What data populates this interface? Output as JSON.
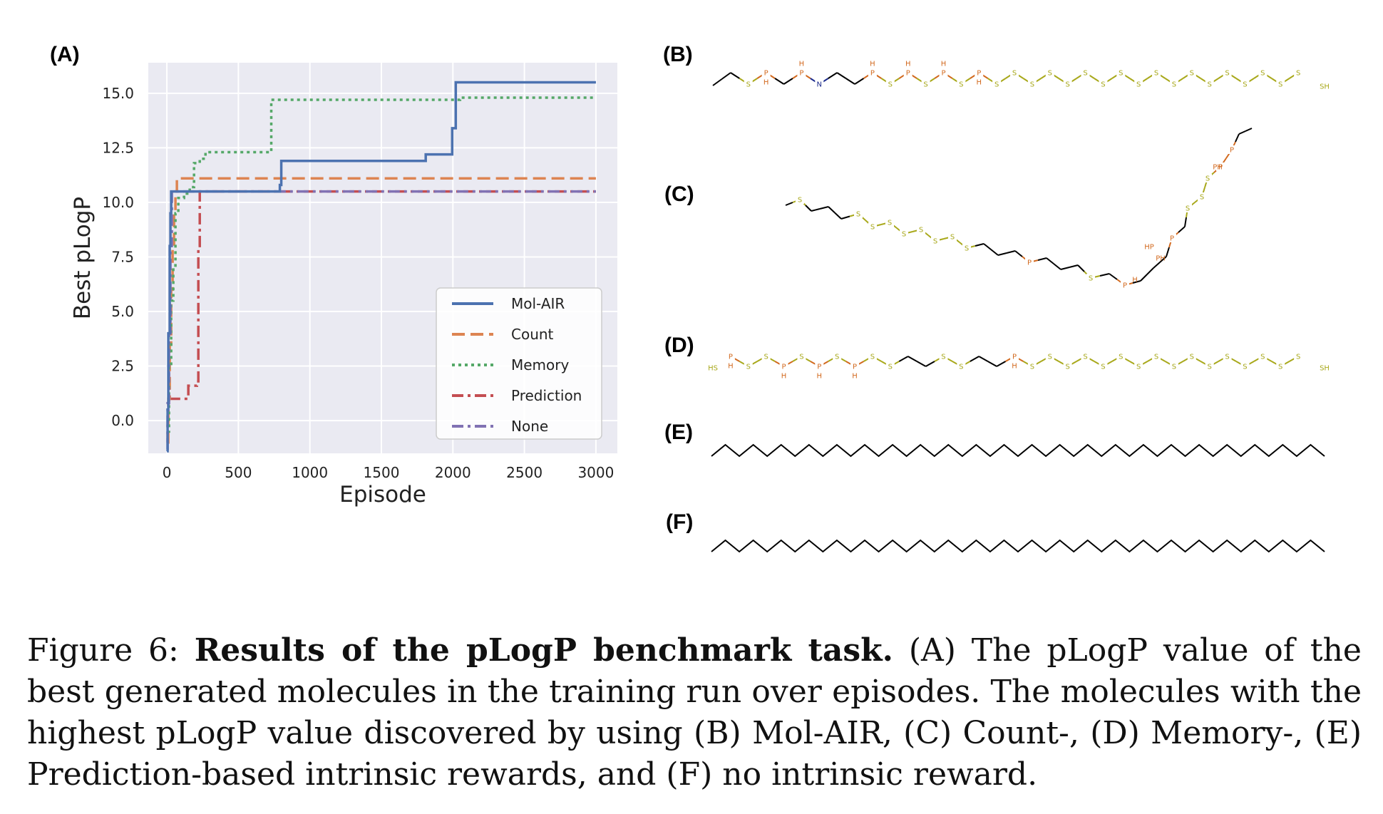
{
  "panels": {
    "a": "(A)",
    "b": "(B)",
    "c": "(C)",
    "d": "(D)",
    "e": "(E)",
    "f": "(F)"
  },
  "chart_data": {
    "type": "line",
    "title": "",
    "xlabel": "Episode",
    "ylabel": "Best pLogP",
    "xlim": [
      -130,
      3150
    ],
    "ylim": [
      -1.5,
      16.4
    ],
    "xticks": [
      0,
      500,
      1000,
      1500,
      2000,
      2500,
      3000
    ],
    "xtick_labels": [
      "0",
      "500",
      "1000",
      "1500",
      "2000",
      "2500",
      "3000"
    ],
    "yticks": [
      0.0,
      2.5,
      5.0,
      7.5,
      10.0,
      12.5,
      15.0
    ],
    "ytick_labels": [
      "0.0",
      "2.5",
      "5.0",
      "7.5",
      "10.0",
      "12.5",
      "15.0"
    ],
    "grid": true,
    "legend_position": "lower-right",
    "series": [
      {
        "name": "Mol-AIR",
        "color": "#4c72b0",
        "style": "solid",
        "x": [
          0,
          5,
          10,
          20,
          25,
          30,
          40,
          50,
          780,
          790,
          800,
          1800,
          1810,
          1990,
          1995,
          2020,
          3000
        ],
        "y": [
          -1.4,
          0.5,
          4.0,
          8.0,
          9.5,
          10.5,
          10.5,
          10.5,
          10.5,
          10.8,
          11.9,
          11.9,
          12.2,
          12.2,
          13.4,
          15.5,
          15.5
        ]
      },
      {
        "name": "Count",
        "color": "#dd8452",
        "style": "dashed",
        "x": [
          0,
          10,
          20,
          30,
          40,
          50,
          60,
          70,
          3000
        ],
        "y": [
          -1.0,
          1.0,
          3.5,
          6.0,
          8.0,
          9.5,
          10.5,
          11.1,
          11.1
        ]
      },
      {
        "name": "Memory",
        "color": "#55a868",
        "style": "dotted",
        "x": [
          0,
          15,
          30,
          45,
          60,
          80,
          120,
          160,
          190,
          230,
          270,
          720,
          730,
          2000,
          2050,
          3000
        ],
        "y": [
          -0.5,
          2.5,
          5.5,
          7.0,
          9.5,
          10.2,
          10.4,
          10.7,
          11.8,
          12.0,
          12.3,
          12.3,
          14.7,
          14.7,
          14.8,
          14.8
        ]
      },
      {
        "name": "Prediction",
        "color": "#c44e52",
        "style": "dashdot",
        "x": [
          0,
          5,
          10,
          100,
          150,
          200,
          210,
          220,
          230,
          3000
        ],
        "y": [
          -1.0,
          0.0,
          1.0,
          1.0,
          1.6,
          1.6,
          1.8,
          8.0,
          10.5,
          10.5
        ]
      },
      {
        "name": "None",
        "color": "#8172b3",
        "style": "dashdot",
        "x": [
          0,
          5,
          15,
          25,
          35,
          45,
          3000
        ],
        "y": [
          -1.3,
          0.8,
          4.0,
          8.0,
          10.5,
          10.5,
          10.5
        ]
      }
    ]
  },
  "molecules": {
    "atoms": {
      "s": "S",
      "p": "P",
      "h": "H",
      "n": "N",
      "sh": "SH",
      "hs": "HS",
      "ph": "PH",
      "hp": "HP"
    },
    "colors": {
      "sulfur": "#a8a81a",
      "phosphorus": "#d2691e",
      "nitrogen": "#1b2a8c",
      "carbon": "#000000"
    }
  },
  "caption": {
    "prefix": "Figure 6:",
    "bold": "Results of the pLogP benchmark task.",
    "text": "(A) The pLogP value of the best generated molecules in the training run over episodes. The molecules with the highest pLogP value discovered by using (B) Mol-AIR, (C) Count-, (D) Memory-, (E) Prediction-based intrinsic rewards, and (F) no intrinsic reward."
  }
}
